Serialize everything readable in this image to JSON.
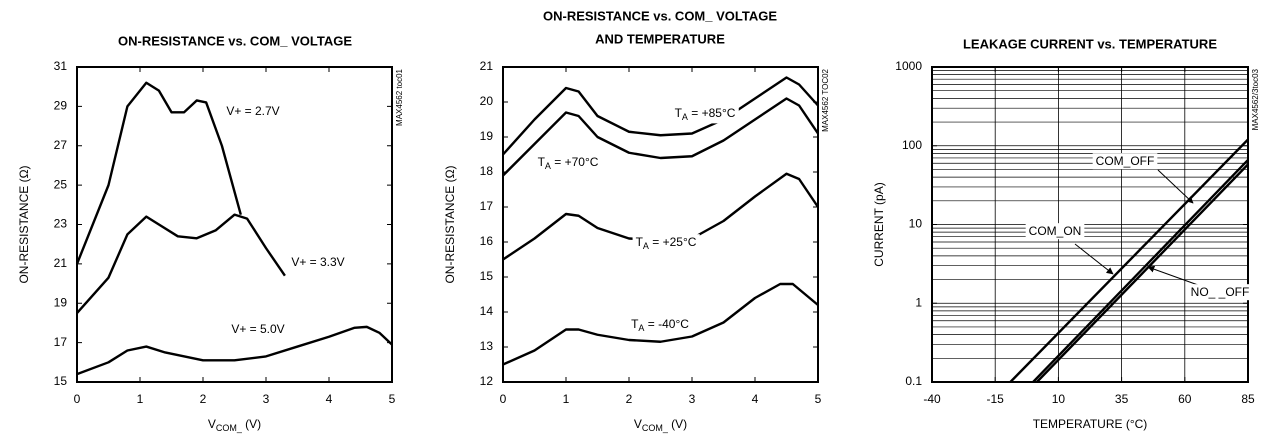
{
  "chart_data": [
    {
      "type": "line",
      "title": "ON-RESISTANCE vs. COM_ VOLTAGE",
      "note": "MAX4562 toc01",
      "x_label": "VCOM_ (V)",
      "y_label": "ON-RESISTANCE (Ω)",
      "xlim": [
        0,
        5
      ],
      "ylim": [
        15,
        31
      ],
      "xticks": [
        0,
        1,
        2,
        3,
        4,
        5
      ],
      "yticks": [
        15,
        17,
        19,
        21,
        23,
        25,
        27,
        29,
        31
      ],
      "grid": false,
      "series": [
        {
          "name": "V+ = 2.7V",
          "color": "#000000",
          "x": [
            0,
            0.5,
            0.8,
            1.1,
            1.3,
            1.5,
            1.7,
            1.9,
            2.05,
            2.3,
            2.6
          ],
          "values": [
            21,
            25,
            29,
            30.2,
            29.8,
            28.7,
            28.7,
            29.3,
            29.2,
            27,
            23.5
          ]
        },
        {
          "name": "V+ = 3.3V",
          "color": "#000000",
          "x": [
            0,
            0.5,
            0.8,
            1.1,
            1.3,
            1.6,
            1.9,
            2.2,
            2.5,
            2.7,
            3.0,
            3.3
          ],
          "values": [
            18.5,
            20.3,
            22.5,
            23.4,
            23,
            22.4,
            22.3,
            22.7,
            23.5,
            23.3,
            21.8,
            20.4
          ]
        },
        {
          "name": "V+ = 5.0V",
          "color": "#000000",
          "x": [
            0,
            0.5,
            0.8,
            1.1,
            1.4,
            2,
            2.5,
            3,
            3.5,
            4,
            4.4,
            4.6,
            4.8,
            5
          ],
          "values": [
            15.4,
            16,
            16.6,
            16.8,
            16.5,
            16.1,
            16.1,
            16.3,
            16.8,
            17.3,
            17.75,
            17.8,
            17.5,
            16.9
          ]
        }
      ]
    },
    {
      "type": "line",
      "title": [
        "ON-RESISTANCE vs. COM_ VOLTAGE",
        "AND TEMPERATURE"
      ],
      "note": "MAX4562 TOC02",
      "x_label": "VCOM_ (V)",
      "y_label": "ON-RESISTANCE (Ω)",
      "xlim": [
        0,
        5
      ],
      "ylim": [
        12,
        21
      ],
      "xticks": [
        0,
        1,
        2,
        3,
        4,
        5
      ],
      "yticks": [
        12,
        13,
        14,
        15,
        16,
        17,
        18,
        19,
        20,
        21
      ],
      "grid": false,
      "series": [
        {
          "name": "TA = +85°C",
          "color": "#000000",
          "x": [
            0,
            0.5,
            1,
            1.2,
            1.5,
            2,
            2.5,
            3,
            3.5,
            4,
            4.5,
            4.7,
            5
          ],
          "values": [
            18.5,
            19.5,
            20.4,
            20.3,
            19.6,
            19.15,
            19.05,
            19.1,
            19.5,
            20.1,
            20.7,
            20.5,
            19.9
          ]
        },
        {
          "name": "TA = +70°C",
          "color": "#000000",
          "x": [
            0,
            0.5,
            1,
            1.2,
            1.5,
            2,
            2.5,
            3,
            3.5,
            4,
            4.5,
            4.7,
            5
          ],
          "values": [
            17.9,
            18.8,
            19.7,
            19.6,
            19,
            18.55,
            18.4,
            18.45,
            18.9,
            19.5,
            20.1,
            19.9,
            19.1
          ]
        },
        {
          "name": "TA = +25°C",
          "color": "#000000",
          "x": [
            0,
            0.5,
            1,
            1.2,
            1.5,
            2,
            2.5,
            3,
            3.5,
            4,
            4.5,
            4.7,
            5
          ],
          "values": [
            15.5,
            16.1,
            16.8,
            16.75,
            16.4,
            16.1,
            16.05,
            16.1,
            16.6,
            17.3,
            17.95,
            17.8,
            17
          ]
        },
        {
          "name": "TA = -40°C",
          "color": "#000000",
          "x": [
            0,
            0.5,
            1,
            1.2,
            1.5,
            2,
            2.5,
            3,
            3.5,
            4,
            4.4,
            4.6,
            5
          ],
          "values": [
            12.5,
            12.9,
            13.5,
            13.5,
            13.35,
            13.2,
            13.15,
            13.3,
            13.7,
            14.4,
            14.8,
            14.8,
            14.2
          ]
        }
      ]
    },
    {
      "type": "line",
      "title": "LEAKAGE CURRENT vs. TEMPERATURE",
      "note": "MAX4562/3toc03",
      "x_label": "TEMPERATURE (°C)",
      "y_label": "CURRENT (pA)",
      "yscale": "log",
      "xlim": [
        -40,
        85
      ],
      "ylim": [
        0.1,
        1000
      ],
      "xticks": [
        -40,
        -15,
        10,
        35,
        60,
        85
      ],
      "yticks": [
        0.1,
        1,
        10,
        100,
        1000
      ],
      "grid": true,
      "series": [
        {
          "name": "COM_ON",
          "color": "#000000",
          "x": [
            -9,
            85
          ],
          "values": [
            0.1,
            120
          ]
        },
        {
          "name": "COM_OFF",
          "color": "#000000",
          "x": [
            0,
            85
          ],
          "values": [
            0.1,
            66
          ]
        },
        {
          "name": "NO_ _OFF",
          "color": "#000000",
          "x": [
            1.5,
            85
          ],
          "values": [
            0.1,
            58
          ]
        }
      ]
    }
  ]
}
